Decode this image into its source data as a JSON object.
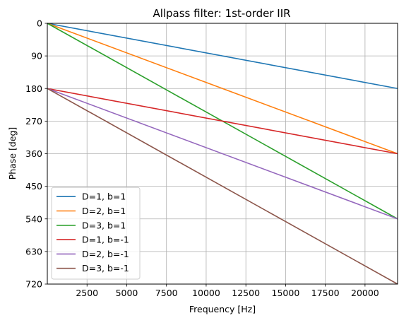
{
  "chart_data": {
    "type": "line",
    "title": "Allpass filter: 1st-order IIR",
    "xlabel": "Frequency [Hz]",
    "ylabel": "Phase [deg]",
    "xlim": [
      0,
      22050
    ],
    "ylim": [
      0,
      720
    ],
    "y_inverted": true,
    "grid": true,
    "legend_position": "lower-left",
    "x_ticks": [
      2500,
      5000,
      7500,
      10000,
      12500,
      15000,
      17500,
      20000
    ],
    "x_tick_labels": [
      "2500",
      "5000",
      "7500",
      "10000",
      "12500",
      "15000",
      "17500",
      "20000"
    ],
    "y_ticks": [
      0,
      90,
      180,
      270,
      360,
      450,
      540,
      630,
      720
    ],
    "y_tick_labels": [
      "0",
      "90",
      "180",
      "270",
      "360",
      "450",
      "540",
      "630",
      "720"
    ],
    "series": [
      {
        "name": "D=1, b=1",
        "color": "#1f77b4",
        "x": [
          0,
          22050
        ],
        "y": [
          0,
          180
        ]
      },
      {
        "name": "D=2, b=1",
        "color": "#ff7f0e",
        "x": [
          0,
          22050
        ],
        "y": [
          0,
          360
        ]
      },
      {
        "name": "D=3, b=1",
        "color": "#2ca02c",
        "x": [
          0,
          22050
        ],
        "y": [
          0,
          540
        ]
      },
      {
        "name": "D=1, b=-1",
        "color": "#d62728",
        "x": [
          0,
          22050
        ],
        "y": [
          180,
          360
        ]
      },
      {
        "name": "D=2, b=-1",
        "color": "#9467bd",
        "x": [
          0,
          22050
        ],
        "y": [
          180,
          540
        ]
      },
      {
        "name": "D=3, b=-1",
        "color": "#8c564b",
        "x": [
          0,
          22050
        ],
        "y": [
          180,
          720
        ]
      }
    ]
  }
}
